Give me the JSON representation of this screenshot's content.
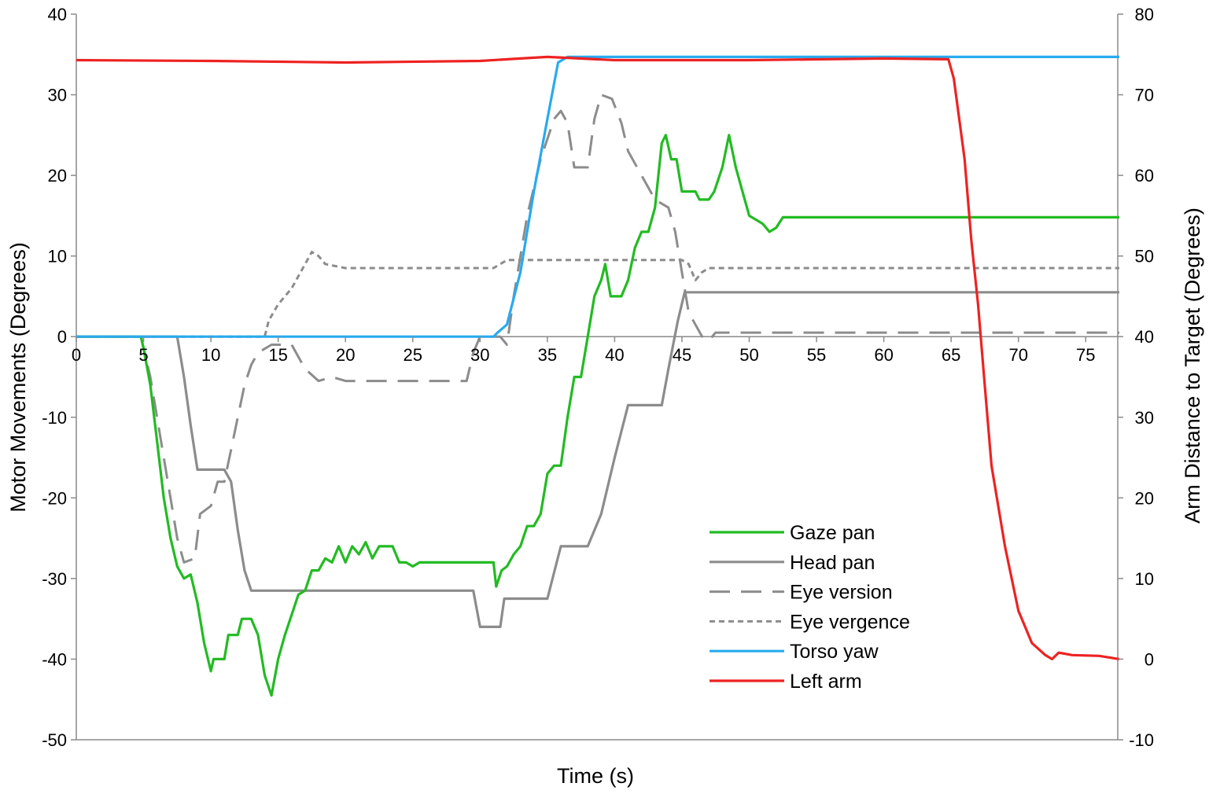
{
  "chart_data": {
    "type": "line",
    "xlabel": "Time (s)",
    "ylabel_left": "Motor Movements (Degrees)",
    "ylabel_right": "Arm Distance to Target (Degrees)",
    "xlim": [
      0,
      77.5
    ],
    "ylim_left": [
      -50,
      40
    ],
    "ylim_right": [
      -10,
      80
    ],
    "x_ticks": [
      0,
      5,
      10,
      15,
      20,
      25,
      30,
      35,
      40,
      45,
      50,
      55,
      60,
      65,
      70,
      75
    ],
    "y_ticks_left": [
      40,
      30,
      20,
      10,
      0,
      -10,
      -20,
      -30,
      -40,
      -50
    ],
    "y_ticks_right": [
      80,
      70,
      60,
      50,
      40,
      30,
      20,
      10,
      0,
      -10
    ],
    "grid": false,
    "legend_position": "bottom-right",
    "series": [
      {
        "name": "Gaze pan",
        "axis": "left",
        "color": "#22bb22",
        "dash": "solid",
        "points": [
          [
            0,
            0
          ],
          [
            4.8,
            0
          ],
          [
            5,
            -1.5
          ],
          [
            5.5,
            -6
          ],
          [
            6,
            -13
          ],
          [
            6.5,
            -20
          ],
          [
            7,
            -25
          ],
          [
            7.5,
            -28.5
          ],
          [
            8,
            -30
          ],
          [
            8.5,
            -29.5
          ],
          [
            9,
            -33
          ],
          [
            9.5,
            -38
          ],
          [
            10,
            -41.5
          ],
          [
            10.2,
            -40
          ],
          [
            11,
            -40
          ],
          [
            11.3,
            -37
          ],
          [
            12,
            -37
          ],
          [
            12.3,
            -35
          ],
          [
            13,
            -35
          ],
          [
            13.5,
            -37
          ],
          [
            14,
            -42
          ],
          [
            14.5,
            -44.5
          ],
          [
            15,
            -40
          ],
          [
            15.5,
            -37
          ],
          [
            16,
            -34.5
          ],
          [
            16.5,
            -32
          ],
          [
            17,
            -31.5
          ],
          [
            17.5,
            -29
          ],
          [
            18,
            -29
          ],
          [
            18.5,
            -27.5
          ],
          [
            19,
            -28
          ],
          [
            19.5,
            -26
          ],
          [
            20,
            -28
          ],
          [
            20.5,
            -26
          ],
          [
            21,
            -27
          ],
          [
            21.5,
            -25.5
          ],
          [
            22,
            -27.5
          ],
          [
            22.5,
            -26
          ],
          [
            23.5,
            -26
          ],
          [
            24,
            -28
          ],
          [
            24.5,
            -28
          ],
          [
            25,
            -28.5
          ],
          [
            25.5,
            -28
          ],
          [
            31,
            -28
          ],
          [
            31.2,
            -31
          ],
          [
            31.6,
            -29
          ],
          [
            32,
            -28.5
          ],
          [
            32.5,
            -27
          ],
          [
            33,
            -26
          ],
          [
            33.5,
            -23.5
          ],
          [
            34,
            -23.5
          ],
          [
            34.5,
            -22
          ],
          [
            35,
            -17
          ],
          [
            35.5,
            -16
          ],
          [
            36,
            -16
          ],
          [
            36.5,
            -10
          ],
          [
            37,
            -5
          ],
          [
            37.5,
            -5
          ],
          [
            38,
            0
          ],
          [
            38.5,
            5
          ],
          [
            39,
            7
          ],
          [
            39.3,
            9
          ],
          [
            39.7,
            5
          ],
          [
            40.5,
            5
          ],
          [
            41,
            7
          ],
          [
            41.5,
            11
          ],
          [
            42,
            13
          ],
          [
            42.5,
            13
          ],
          [
            43,
            16
          ],
          [
            43.5,
            24
          ],
          [
            43.8,
            25
          ],
          [
            44.2,
            22
          ],
          [
            44.6,
            22
          ],
          [
            45,
            18
          ],
          [
            46,
            18
          ],
          [
            46.3,
            17
          ],
          [
            47,
            17
          ],
          [
            47.4,
            18
          ],
          [
            48,
            21
          ],
          [
            48.5,
            25
          ],
          [
            49,
            21
          ],
          [
            49.5,
            18
          ],
          [
            50,
            15
          ],
          [
            50.5,
            14.5
          ],
          [
            51,
            14
          ],
          [
            51.5,
            13
          ],
          [
            52,
            13.5
          ],
          [
            52.5,
            14.8
          ],
          [
            77.5,
            14.8
          ]
        ]
      },
      {
        "name": "Head pan",
        "axis": "left",
        "color": "#8c8c8c",
        "dash": "solid",
        "points": [
          [
            0,
            0
          ],
          [
            7.5,
            0
          ],
          [
            8,
            -5
          ],
          [
            8.5,
            -11
          ],
          [
            9,
            -16.5
          ],
          [
            11,
            -16.5
          ],
          [
            11.5,
            -18
          ],
          [
            12,
            -24
          ],
          [
            12.5,
            -29
          ],
          [
            13,
            -31.5
          ],
          [
            29.5,
            -31.5
          ],
          [
            30,
            -36
          ],
          [
            31.5,
            -36
          ],
          [
            31.8,
            -32.5
          ],
          [
            35,
            -32.5
          ],
          [
            36,
            -26
          ],
          [
            38,
            -26
          ],
          [
            39,
            -22
          ],
          [
            40,
            -15
          ],
          [
            41,
            -8.5
          ],
          [
            43.5,
            -8.5
          ],
          [
            44,
            -4
          ],
          [
            44.7,
            2
          ],
          [
            45.2,
            5.5
          ],
          [
            77.5,
            5.5
          ]
        ]
      },
      {
        "name": "Eye version",
        "axis": "left",
        "color": "#8c8c8c",
        "dash": "long",
        "points": [
          [
            0,
            0
          ],
          [
            4.8,
            0
          ],
          [
            5.5,
            -5
          ],
          [
            6.5,
            -15
          ],
          [
            7.5,
            -25
          ],
          [
            8,
            -28
          ],
          [
            8.8,
            -27.5
          ],
          [
            9.2,
            -22
          ],
          [
            10,
            -21
          ],
          [
            10.5,
            -18
          ],
          [
            11,
            -18
          ],
          [
            11.5,
            -14
          ],
          [
            12,
            -10
          ],
          [
            12.5,
            -6
          ],
          [
            13,
            -3.5
          ],
          [
            13.5,
            -2
          ],
          [
            14.5,
            -1
          ],
          [
            16,
            -1
          ],
          [
            16.5,
            -2.5
          ],
          [
            17,
            -4
          ],
          [
            18,
            -5.5
          ],
          [
            19,
            -5
          ],
          [
            20,
            -5.5
          ],
          [
            29,
            -5.5
          ],
          [
            29.5,
            -2
          ],
          [
            30,
            0
          ],
          [
            31.5,
            0
          ],
          [
            32,
            -1
          ],
          [
            32.5,
            5
          ],
          [
            33.5,
            15
          ],
          [
            34.5,
            22
          ],
          [
            35.5,
            27
          ],
          [
            36,
            28
          ],
          [
            36.5,
            26.5
          ],
          [
            37,
            21
          ],
          [
            38,
            21
          ],
          [
            38.5,
            27
          ],
          [
            39,
            30
          ],
          [
            39.8,
            29.5
          ],
          [
            40.5,
            26.5
          ],
          [
            41,
            23
          ],
          [
            42,
            20
          ],
          [
            43,
            17
          ],
          [
            44,
            16
          ],
          [
            44.5,
            13
          ],
          [
            45,
            8
          ],
          [
            45.5,
            3
          ],
          [
            46.5,
            0
          ],
          [
            47,
            -0.5
          ],
          [
            47.5,
            0.5
          ],
          [
            77.5,
            0.5
          ]
        ]
      },
      {
        "name": "Eye vergence",
        "axis": "left",
        "color": "#8c8c8c",
        "dash": "short",
        "points": [
          [
            0,
            0
          ],
          [
            14,
            0
          ],
          [
            14.3,
            2
          ],
          [
            15,
            4
          ],
          [
            16,
            6
          ],
          [
            17,
            9
          ],
          [
            17.5,
            10.5
          ],
          [
            18,
            10
          ],
          [
            18.5,
            9
          ],
          [
            20,
            8.5
          ],
          [
            31,
            8.5
          ],
          [
            32,
            9.5
          ],
          [
            45,
            9.5
          ],
          [
            45.5,
            9
          ],
          [
            46,
            7
          ],
          [
            46.5,
            8
          ],
          [
            47,
            8.5
          ],
          [
            77.5,
            8.5
          ]
        ]
      },
      {
        "name": "Torso yaw",
        "axis": "left",
        "color": "#29aaee",
        "dash": "solid",
        "points": [
          [
            0,
            0
          ],
          [
            31,
            0
          ],
          [
            31.3,
            0.5
          ],
          [
            32,
            1.5
          ],
          [
            33,
            8
          ],
          [
            34,
            18
          ],
          [
            35,
            27
          ],
          [
            35.8,
            34
          ],
          [
            36.5,
            34.7
          ],
          [
            77.5,
            34.7
          ]
        ]
      },
      {
        "name": "Left arm",
        "axis": "right",
        "color": "#ee2222",
        "dash": "solid",
        "points": [
          [
            0,
            74.3
          ],
          [
            10,
            74.2
          ],
          [
            20,
            74
          ],
          [
            30,
            74.2
          ],
          [
            33,
            74.5
          ],
          [
            35,
            74.7
          ],
          [
            40,
            74.3
          ],
          [
            50,
            74.3
          ],
          [
            60,
            74.5
          ],
          [
            64.8,
            74.4
          ],
          [
            65.2,
            72
          ],
          [
            66,
            62
          ],
          [
            66.5,
            52
          ],
          [
            67,
            44
          ],
          [
            67.5,
            34
          ],
          [
            68,
            24
          ],
          [
            69,
            14
          ],
          [
            70,
            6
          ],
          [
            71,
            2
          ],
          [
            72,
            0.5
          ],
          [
            72.5,
            0
          ],
          [
            73,
            0.8
          ],
          [
            74,
            0.5
          ],
          [
            76,
            0.4
          ],
          [
            77.5,
            0
          ]
        ]
      }
    ]
  }
}
